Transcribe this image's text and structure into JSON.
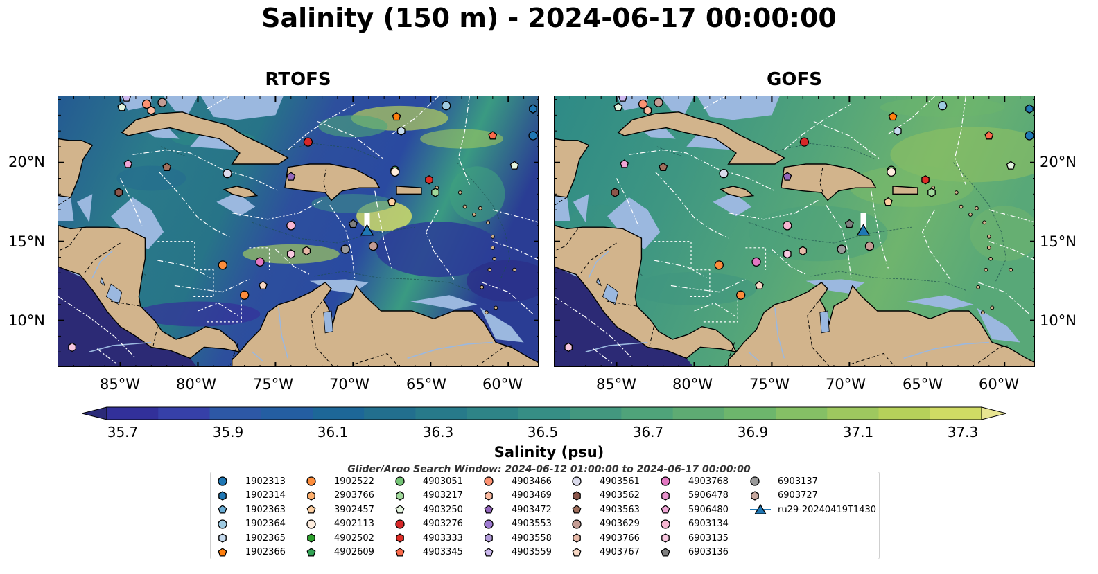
{
  "title": "Salinity (150 m) - 2024-06-17 00:00:00",
  "panels": [
    {
      "title": "RTOFS"
    },
    {
      "title": "GOFS"
    }
  ],
  "axes": {
    "x_ticks": [
      "85°W",
      "80°W",
      "75°W",
      "70°W",
      "65°W",
      "60°W"
    ],
    "y_ticks": [
      "20°N",
      "15°N",
      "10°N"
    ],
    "lon_range": [
      -89,
      -58
    ],
    "lat_range": [
      7,
      24.2
    ]
  },
  "colorbar": {
    "label": "Salinity (psu)",
    "ticks": [
      "35.7",
      "35.9",
      "36.1",
      "36.3",
      "36.5",
      "36.7",
      "36.9",
      "37.1",
      "37.3"
    ],
    "colors": [
      "#2b2a78",
      "#32309a",
      "#3640a8",
      "#2d58a6",
      "#245ea2",
      "#1d6798",
      "#226f8e",
      "#277a8a",
      "#2e8487",
      "#368e85",
      "#43987f",
      "#4fa37a",
      "#5eab73",
      "#6db66c",
      "#85c065",
      "#9ec85f",
      "#b6d15a",
      "#d0db64",
      "#e8e591"
    ]
  },
  "search_window": "Glider/Argo Search Window: 2024-06-12 01:00:00 to 2024-06-17 00:00:00",
  "legend": [
    [
      "1902313",
      "circle",
      "#1f77b4"
    ],
    [
      "1902314",
      "hexagon",
      "#1f77b4"
    ],
    [
      "1902363",
      "pentagon",
      "#6baed6"
    ],
    [
      "1902364",
      "circle",
      "#9ecae1"
    ],
    [
      "1902365",
      "hexagon",
      "#c6dbef"
    ],
    [
      "1902366",
      "pentagon",
      "#ff7f0e"
    ],
    [
      "1902522",
      "circle",
      "#fd8d3c"
    ],
    [
      "2903766",
      "hexagon",
      "#fdae6b"
    ],
    [
      "3902457",
      "pentagon",
      "#fdd0a2"
    ],
    [
      "4902113",
      "circle",
      "#feedde"
    ],
    [
      "4902502",
      "hexagon",
      "#2ca02c"
    ],
    [
      "4902609",
      "pentagon",
      "#31a354"
    ],
    [
      "4903051",
      "circle",
      "#74c476"
    ],
    [
      "4903217",
      "hexagon",
      "#a1d99b"
    ],
    [
      "4903250",
      "pentagon",
      "#e5f5e0"
    ],
    [
      "4903276",
      "circle",
      "#d62728"
    ],
    [
      "4903333",
      "hexagon",
      "#de2d26"
    ],
    [
      "4903345",
      "pentagon",
      "#fb6a4a"
    ],
    [
      "4903466",
      "circle",
      "#fc9272"
    ],
    [
      "4903469",
      "hexagon",
      "#fcbba1"
    ],
    [
      "4903472",
      "pentagon",
      "#9467bd"
    ],
    [
      "4903553",
      "circle",
      "#9e7ad1"
    ],
    [
      "4903558",
      "hexagon",
      "#b39ddb"
    ],
    [
      "4903559",
      "pentagon",
      "#cbb8ee"
    ],
    [
      "4903561",
      "circle",
      "#dadaeb"
    ],
    [
      "4903562",
      "hexagon",
      "#8c564b"
    ],
    [
      "4903563",
      "pentagon",
      "#a0705e"
    ],
    [
      "4903629",
      "circle",
      "#c49c94"
    ],
    [
      "4903766",
      "hexagon",
      "#e7b9a8"
    ],
    [
      "4903767",
      "pentagon",
      "#f7d7c4"
    ],
    [
      "4903768",
      "circle",
      "#e377c2"
    ],
    [
      "5906478",
      "hexagon",
      "#e992cd"
    ],
    [
      "5906480",
      "pentagon",
      "#f0a6d6"
    ],
    [
      "6903134",
      "circle",
      "#f7b6d2"
    ],
    [
      "6903135",
      "hexagon",
      "#f9c8e0"
    ],
    [
      "6903136",
      "pentagon",
      "#7f7f7f"
    ],
    [
      "6903137",
      "circle",
      "#9a9a9a"
    ],
    [
      "6903727",
      "hexagon",
      "#c7a89f"
    ],
    [
      "ru29-20240419T1430",
      "triangle",
      "#1f77b4"
    ]
  ],
  "floats": [
    [
      -84.6,
      24.1,
      "pentagon",
      "#cbb8ee"
    ],
    [
      -84.9,
      23.5,
      "pentagon",
      "#e5f5e0"
    ],
    [
      -83.3,
      23.7,
      "circle",
      "#fc9272"
    ],
    [
      -83.0,
      23.3,
      "hexagon",
      "#fcbba1"
    ],
    [
      -82.3,
      23.8,
      "circle",
      "#c49c94"
    ],
    [
      -72.9,
      21.3,
      "circle",
      "#d62728"
    ],
    [
      -67.2,
      22.9,
      "pentagon",
      "#ff7f0e"
    ],
    [
      -64.0,
      23.6,
      "circle",
      "#9ecae1"
    ],
    [
      -66.9,
      22.0,
      "hexagon",
      "#c6dbef"
    ],
    [
      -58.4,
      23.4,
      "hexagon",
      "#1f77b4"
    ],
    [
      -58.4,
      21.7,
      "circle",
      "#1f77b4"
    ],
    [
      -61.0,
      21.7,
      "pentagon",
      "#fb6a4a"
    ],
    [
      -59.6,
      19.8,
      "pentagon",
      "#e5f5e0"
    ],
    [
      -84.5,
      19.9,
      "pentagon",
      "#f0a6d6"
    ],
    [
      -82.0,
      19.7,
      "pentagon",
      "#a0705e"
    ],
    [
      -78.1,
      19.3,
      "circle",
      "#dadaeb"
    ],
    [
      -74.0,
      19.1,
      "pentagon",
      "#9467bd"
    ],
    [
      -67.3,
      19.5,
      "circle",
      "#74c476"
    ],
    [
      -67.3,
      19.4,
      "circle",
      "#feedde"
    ],
    [
      -65.1,
      18.9,
      "hexagon",
      "#de2d26"
    ],
    [
      -64.7,
      18.1,
      "hexagon",
      "#a1d99b"
    ],
    [
      -67.5,
      17.5,
      "pentagon",
      "#fdd0a2"
    ],
    [
      -85.1,
      18.1,
      "hexagon",
      "#8c564b"
    ],
    [
      -74.0,
      16.0,
      "circle",
      "#f7b6d2"
    ],
    [
      -70.0,
      16.1,
      "pentagon",
      "#7f7f7f"
    ],
    [
      -78.4,
      13.5,
      "circle",
      "#fd8d3c"
    ],
    [
      -76.0,
      13.7,
      "circle",
      "#e377c2"
    ],
    [
      -74.0,
      14.2,
      "hexagon",
      "#f9c8e0"
    ],
    [
      -73.0,
      14.4,
      "hexagon",
      "#e7b9a8"
    ],
    [
      -70.5,
      14.5,
      "circle",
      "#9a9a9a"
    ],
    [
      -68.7,
      14.7,
      "circle",
      "#c49c94"
    ],
    [
      -75.8,
      12.2,
      "pentagon",
      "#f7d7c4"
    ],
    [
      -77.0,
      11.6,
      "circle",
      "#fd8d3c"
    ],
    [
      -88.1,
      8.3,
      "hexagon",
      "#f9c8e0"
    ]
  ],
  "glider": {
    "lon": -69.1,
    "lat": 15.7
  }
}
